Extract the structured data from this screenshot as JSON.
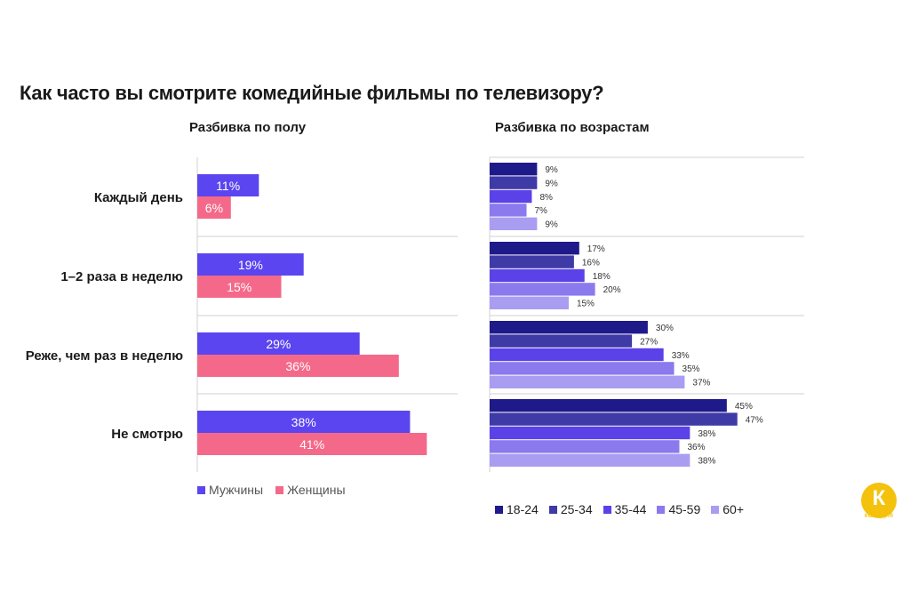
{
  "title": "Как часто вы смотрите комедийные фильмы по телевизору?",
  "logo": {
    "letter": "К",
    "text": "КОМЕДИЯ"
  },
  "chart_data": [
    {
      "type": "bar",
      "orientation": "horizontal",
      "subtitle": "Разбивка по полу",
      "categories": [
        "Каждый день",
        "1–2 раза в неделю",
        "Реже, чем раз в неделю",
        "Не смотрю"
      ],
      "series": [
        {
          "name": "Мужчины",
          "color": "#5b45f0",
          "values": [
            11,
            19,
            29,
            38
          ]
        },
        {
          "name": "Женщины",
          "color": "#f4698a",
          "values": [
            6,
            15,
            36,
            41
          ]
        }
      ],
      "value_suffix": "%",
      "grid": false,
      "legend_position": "bottom"
    },
    {
      "type": "bar",
      "orientation": "horizontal",
      "subtitle": "Разбивка по возрастам",
      "categories": [
        "Каждый день",
        "1–2 раза в неделю",
        "Реже, чем раз в неделю",
        "Не смотрю"
      ],
      "series": [
        {
          "name": "18-24",
          "color": "#1f1a8a",
          "values": [
            9,
            17,
            30,
            45
          ]
        },
        {
          "name": "25-34",
          "color": "#3e3aa6",
          "values": [
            9,
            16,
            27,
            47
          ]
        },
        {
          "name": "35-44",
          "color": "#5a42e8",
          "values": [
            8,
            18,
            33,
            38
          ]
        },
        {
          "name": "45-59",
          "color": "#8b79ee",
          "values": [
            7,
            20,
            35,
            36
          ]
        },
        {
          "name": "60+",
          "color": "#a99df2",
          "values": [
            9,
            15,
            37,
            38
          ]
        }
      ],
      "value_suffix": "%",
      "grid": false,
      "legend_position": "bottom"
    }
  ]
}
